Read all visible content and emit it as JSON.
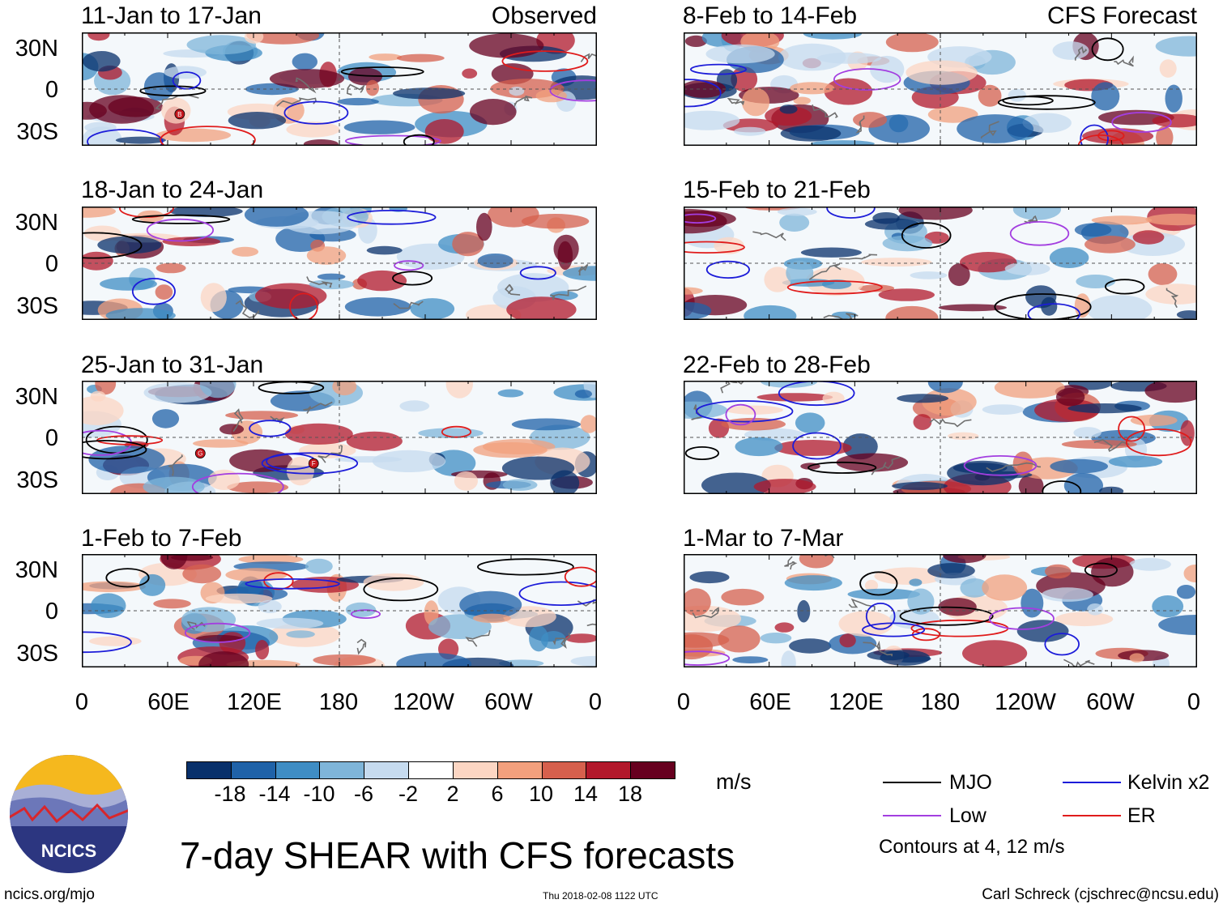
{
  "chart_data": {
    "type": "heatmap",
    "title": "7-day SHEAR with CFS forecasts",
    "units": "m/s",
    "x_ticks": [
      "0",
      "60E",
      "120E",
      "180",
      "120W",
      "60W",
      "0"
    ],
    "y_ticks": [
      "30N",
      "0",
      "30S"
    ],
    "columns": {
      "left": {
        "label": "Observed"
      },
      "right": {
        "label": "CFS Forecast"
      }
    },
    "panels": [
      {
        "title": "11-Jan to 17-Jan",
        "column": "left",
        "row": 0,
        "markers": [
          "B"
        ]
      },
      {
        "title": "18-Jan to 24-Jan",
        "column": "left",
        "row": 1,
        "markers": []
      },
      {
        "title": "25-Jan to 31-Jan",
        "column": "left",
        "row": 2,
        "markers": [
          "G",
          "F"
        ]
      },
      {
        "title": "1-Feb to 7-Feb",
        "column": "left",
        "row": 3,
        "markers": []
      },
      {
        "title": "8-Feb to 14-Feb",
        "column": "right",
        "row": 0,
        "markers": []
      },
      {
        "title": "15-Feb to 21-Feb",
        "column": "right",
        "row": 1,
        "markers": []
      },
      {
        "title": "22-Feb to 28-Feb",
        "column": "right",
        "row": 2,
        "markers": []
      },
      {
        "title": "1-Mar to 7-Mar",
        "column": "right",
        "row": 3,
        "markers": []
      }
    ],
    "colorbar": {
      "labels": [
        "-18",
        "-14",
        "-10",
        "-6",
        "-2",
        "2",
        "6",
        "10",
        "14",
        "18"
      ],
      "colors": [
        "#08306b",
        "#1f62a8",
        "#3f8dc4",
        "#7fb5d9",
        "#c6dbef",
        "#ffffff",
        "#fcd6c3",
        "#f2a07d",
        "#d6604d",
        "#b2182b",
        "#67001f"
      ]
    },
    "legend": [
      {
        "label": "MJO",
        "color": "#000000"
      },
      {
        "label": "Kelvin x2",
        "color": "#1c1cd9"
      },
      {
        "label": "Low",
        "color": "#a33ee0"
      },
      {
        "label": "ER",
        "color": "#e01b1b"
      }
    ],
    "contour_note": "Contours at 4, 12 m/s"
  },
  "footer": {
    "logo_text": "NCICS",
    "website": "ncics.org/mjo",
    "timestamp": "Thu 2018-02-08 1122 UTC",
    "credit": "Carl Schreck (cjschrec@ncsu.edu)"
  }
}
